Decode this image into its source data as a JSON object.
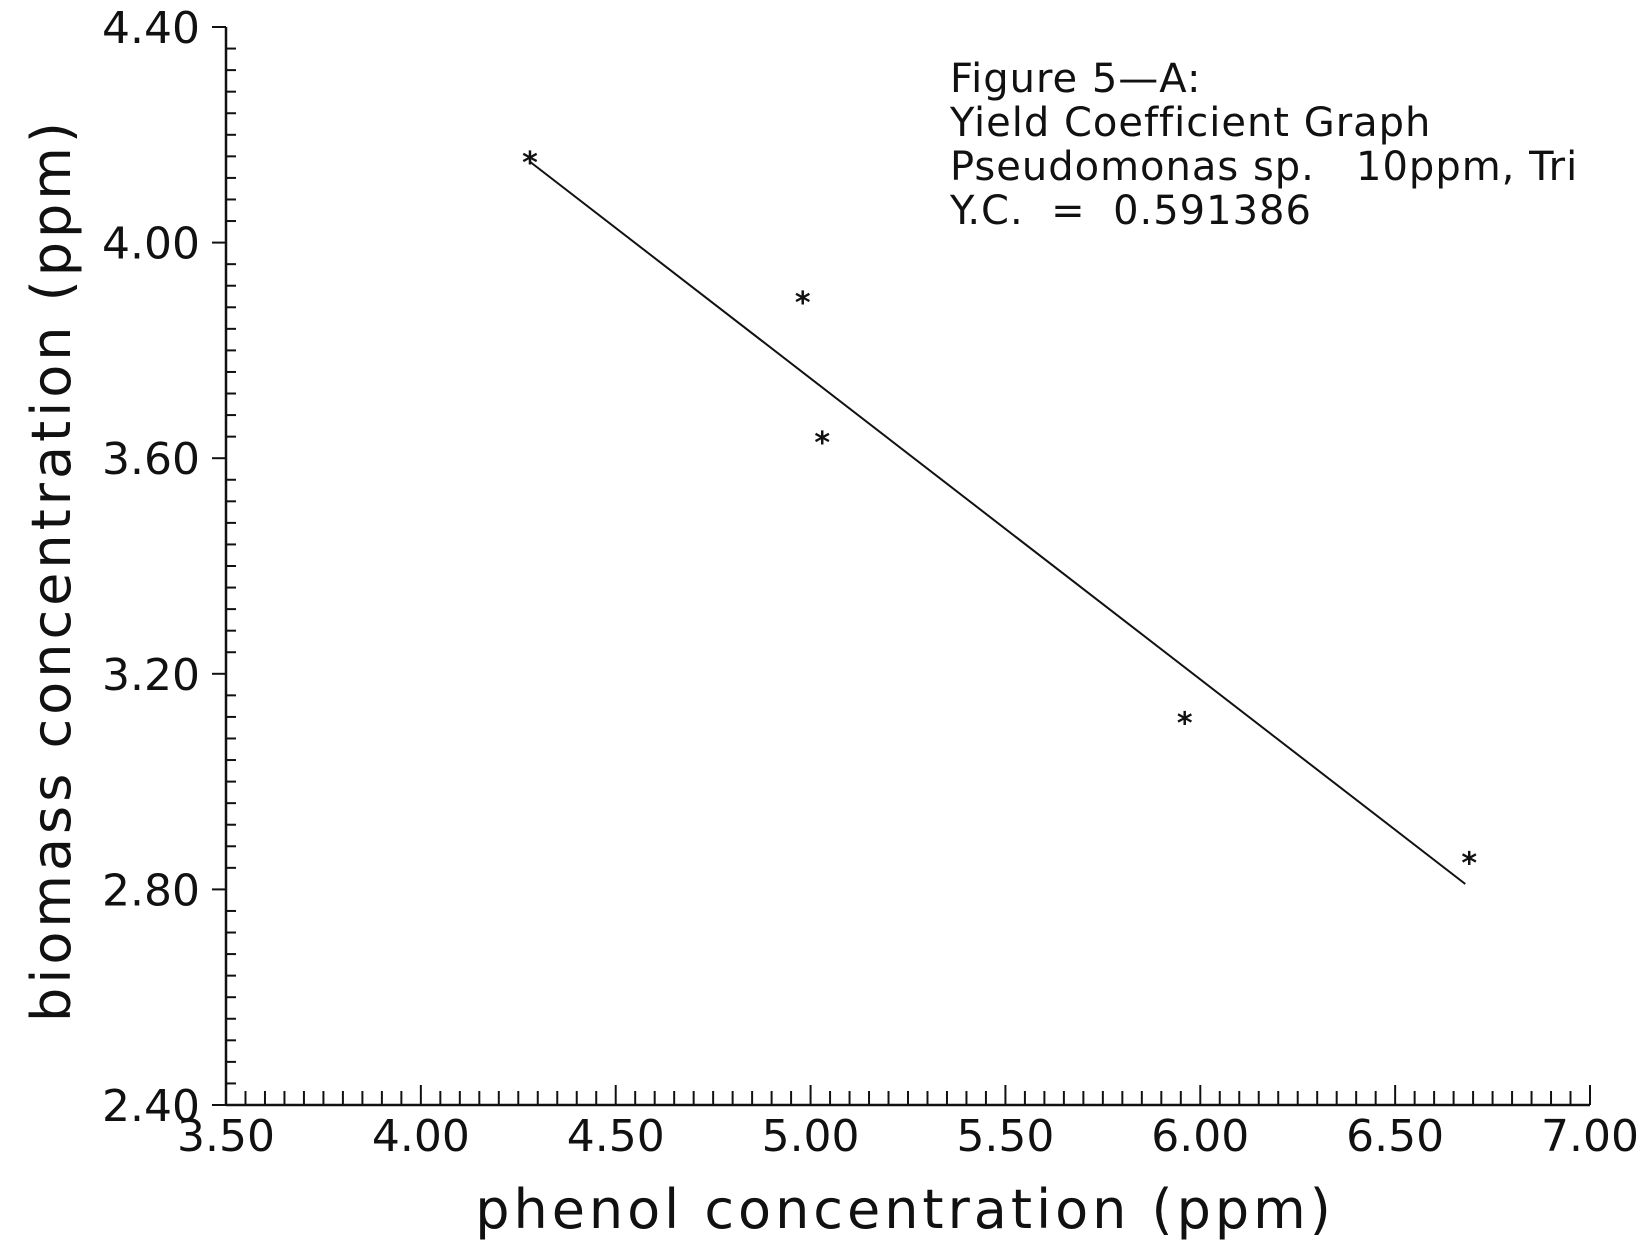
{
  "chart_data": {
    "type": "scatter",
    "caption_lines": [
      "Figure 5—A:",
      "Yield Coefficient Graph",
      "Pseudomonas sp.   10ppm, Tri",
      "Y.C.  =  0.591386"
    ],
    "xlabel": "phenol concentration (ppm)",
    "ylabel": "biomass concentration (ppm)",
    "xlim": [
      3.5,
      7.0
    ],
    "ylim": [
      2.4,
      4.4
    ],
    "x_ticks": [
      "3.50",
      "4.00",
      "4.50",
      "5.00",
      "5.50",
      "6.00",
      "6.50",
      "7.00"
    ],
    "y_ticks": [
      "2.40",
      "2.80",
      "3.20",
      "3.60",
      "4.00",
      "4.40"
    ],
    "x_minor_step": 0.05,
    "y_minor_step": 0.04,
    "grid": false,
    "marker": "*",
    "series": [
      {
        "points": [
          {
            "x": 4.28,
            "y": 4.15
          },
          {
            "x": 4.98,
            "y": 3.89
          },
          {
            "x": 5.03,
            "y": 3.63
          },
          {
            "x": 5.96,
            "y": 3.11
          },
          {
            "x": 6.69,
            "y": 2.85
          }
        ]
      }
    ],
    "fit_line": {
      "x": [
        4.28,
        6.68
      ],
      "y": [
        4.15,
        2.81
      ]
    }
  }
}
